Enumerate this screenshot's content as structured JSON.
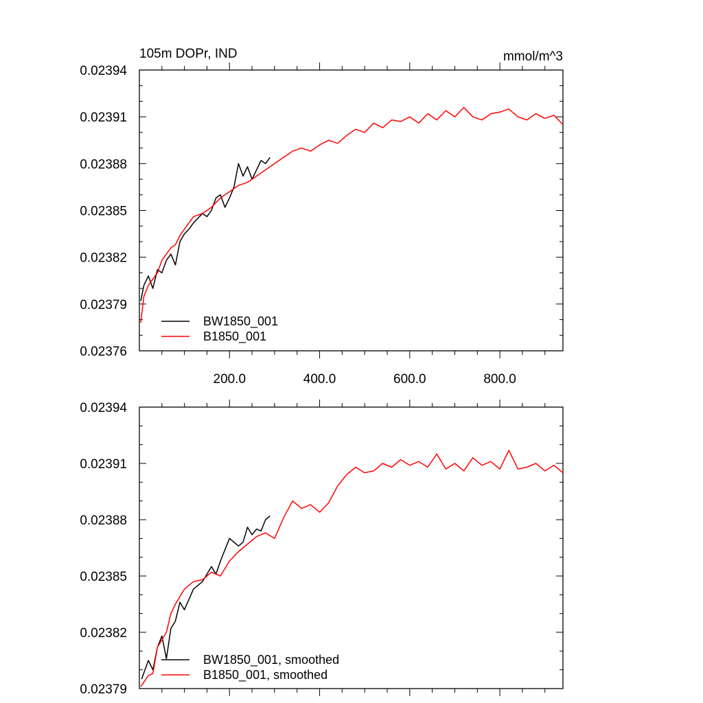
{
  "chart_data": [
    {
      "type": "line",
      "title": "105m DOPr, IND",
      "units": "mmol/m^3",
      "xlabel": "",
      "ylabel": "",
      "xlim": [
        0,
        940
      ],
      "ylim": [
        0.02376,
        0.02394
      ],
      "xticks": [
        200,
        400,
        600,
        800
      ],
      "xtick_labels": [
        "200.0",
        "400.0",
        "600.0",
        "800.0"
      ],
      "yticks": [
        0.02376,
        0.02379,
        0.02382,
        0.02385,
        0.02388,
        0.02391,
        0.02394
      ],
      "ytick_labels": [
        "0.02376",
        "0.02379",
        "0.02382",
        "0.02385",
        "0.02388",
        "0.02391",
        "0.02394"
      ],
      "legend_position": "bottom-left",
      "series": [
        {
          "name": "BW1850_001",
          "color": "#000000",
          "x": [
            3,
            10,
            20,
            30,
            40,
            50,
            60,
            70,
            80,
            90,
            100,
            110,
            120,
            130,
            140,
            150,
            160,
            170,
            180,
            190,
            200,
            210,
            220,
            230,
            240,
            250,
            260,
            270,
            280,
            290
          ],
          "values": [
            0.023792,
            0.023802,
            0.023808,
            0.0238,
            0.023812,
            0.02381,
            0.023818,
            0.023822,
            0.023815,
            0.02383,
            0.023835,
            0.023838,
            0.023842,
            0.023845,
            0.023848,
            0.023846,
            0.02385,
            0.023858,
            0.02386,
            0.023852,
            0.023858,
            0.023865,
            0.02388,
            0.023872,
            0.023878,
            0.02387,
            0.023876,
            0.023882,
            0.02388,
            0.023884
          ]
        },
        {
          "name": "B1850_001",
          "color": "#ff0000",
          "x": [
            3,
            10,
            20,
            30,
            40,
            50,
            60,
            70,
            80,
            90,
            100,
            120,
            140,
            160,
            180,
            200,
            220,
            240,
            260,
            280,
            300,
            320,
            340,
            360,
            380,
            400,
            420,
            440,
            460,
            480,
            500,
            520,
            540,
            560,
            580,
            600,
            620,
            640,
            660,
            680,
            700,
            720,
            740,
            760,
            780,
            800,
            820,
            840,
            860,
            880,
            900,
            920,
            940
          ],
          "values": [
            0.023778,
            0.023795,
            0.023802,
            0.023806,
            0.02381,
            0.023818,
            0.023822,
            0.023826,
            0.023828,
            0.023834,
            0.023838,
            0.023846,
            0.023848,
            0.023852,
            0.023858,
            0.023862,
            0.023866,
            0.023868,
            0.023872,
            0.023876,
            0.02388,
            0.023884,
            0.023888,
            0.02389,
            0.023888,
            0.023892,
            0.023895,
            0.023893,
            0.023898,
            0.023902,
            0.0239,
            0.023906,
            0.023903,
            0.023908,
            0.023907,
            0.02391,
            0.023906,
            0.023912,
            0.023908,
            0.023914,
            0.02391,
            0.023916,
            0.02391,
            0.023908,
            0.023912,
            0.023913,
            0.023915,
            0.02391,
            0.023908,
            0.023912,
            0.023909,
            0.023911,
            0.023905
          ]
        }
      ]
    },
    {
      "type": "line",
      "title": "",
      "xlabel": "",
      "ylabel": "",
      "xlim": [
        0,
        940
      ],
      "ylim": [
        0.02379,
        0.02394
      ],
      "xticks": [
        200,
        400,
        600,
        800
      ],
      "yticks": [
        0.02379,
        0.02382,
        0.02385,
        0.02388,
        0.02391,
        0.02394
      ],
      "ytick_labels": [
        "0.02379",
        "0.02382",
        "0.02385",
        "0.02388",
        "0.02391",
        "0.02394"
      ],
      "legend_position": "bottom-left",
      "series": [
        {
          "name": "BW1850_001, smoothed",
          "color": "#000000",
          "x": [
            5,
            20,
            30,
            40,
            50,
            60,
            70,
            80,
            90,
            100,
            120,
            140,
            160,
            170,
            180,
            200,
            220,
            230,
            240,
            250,
            260,
            270,
            280,
            290
          ],
          "values": [
            0.023795,
            0.023805,
            0.0238,
            0.023812,
            0.023818,
            0.023806,
            0.023822,
            0.023826,
            0.023836,
            0.023832,
            0.023843,
            0.023847,
            0.023855,
            0.023851,
            0.023858,
            0.02387,
            0.023866,
            0.023868,
            0.023876,
            0.023872,
            0.023875,
            0.023874,
            0.02388,
            0.023882
          ]
        },
        {
          "name": "B1850_001, smoothed",
          "color": "#ff0000",
          "x": [
            3,
            20,
            30,
            40,
            60,
            70,
            80,
            100,
            120,
            140,
            160,
            180,
            200,
            220,
            240,
            260,
            280,
            300,
            320,
            340,
            360,
            380,
            400,
            420,
            440,
            460,
            480,
            500,
            520,
            540,
            560,
            580,
            600,
            620,
            640,
            660,
            680,
            700,
            720,
            740,
            760,
            780,
            800,
            820,
            840,
            860,
            880,
            900,
            920,
            940
          ],
          "values": [
            0.023791,
            0.023797,
            0.023798,
            0.023812,
            0.02382,
            0.02383,
            0.023835,
            0.023843,
            0.023847,
            0.023848,
            0.023852,
            0.02385,
            0.023858,
            0.023863,
            0.023867,
            0.023871,
            0.023873,
            0.02387,
            0.023881,
            0.02389,
            0.023886,
            0.023888,
            0.023884,
            0.023889,
            0.023898,
            0.023904,
            0.023908,
            0.023905,
            0.023906,
            0.02391,
            0.023908,
            0.023912,
            0.023909,
            0.023911,
            0.023908,
            0.023915,
            0.023907,
            0.02391,
            0.023906,
            0.023913,
            0.023909,
            0.023911,
            0.023907,
            0.023917,
            0.023907,
            0.023908,
            0.02391,
            0.023906,
            0.023909,
            0.023905
          ]
        }
      ]
    }
  ]
}
